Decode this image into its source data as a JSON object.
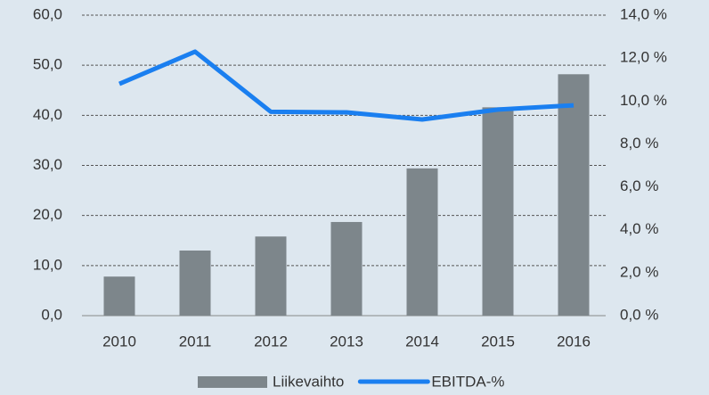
{
  "chart_data": {
    "type": "bar",
    "categories": [
      "2010",
      "2011",
      "2012",
      "2013",
      "2014",
      "2015",
      "2016"
    ],
    "series": [
      {
        "name": "Liikevaihto",
        "color": "#7d868b",
        "values": [
          7.8,
          13.0,
          15.8,
          18.7,
          29.4,
          41.6,
          48.2
        ]
      },
      {
        "name": "EBITDA-%",
        "color": "#1a7ff0",
        "type": "line",
        "axis": "y2",
        "values": [
          10.8,
          12.3,
          9.5,
          9.47,
          9.14,
          9.6,
          9.8
        ]
      }
    ],
    "ylim": [
      0,
      60
    ],
    "yticks": [
      {
        "value": 0,
        "label": "0,0"
      },
      {
        "value": 10,
        "label": "10,0"
      },
      {
        "value": 20,
        "label": "20,0"
      },
      {
        "value": 30,
        "label": "30,0"
      },
      {
        "value": 40,
        "label": "40,0"
      },
      {
        "value": 50,
        "label": "50,0"
      },
      {
        "value": 60,
        "label": "60,0"
      }
    ],
    "y2lim": [
      0,
      14
    ],
    "y2ticks": [
      {
        "value": 0,
        "label": "0,0 %"
      },
      {
        "value": 2,
        "label": "2,0 %"
      },
      {
        "value": 4,
        "label": "4,0 %"
      },
      {
        "value": 6,
        "label": "6,0 %"
      },
      {
        "value": 8,
        "label": "8,0 %"
      },
      {
        "value": 10,
        "label": "10,0 %"
      },
      {
        "value": 12,
        "label": "12,0 %"
      },
      {
        "value": 14,
        "label": "14,0 %"
      }
    ],
    "grid": true,
    "legend": "bottom"
  }
}
